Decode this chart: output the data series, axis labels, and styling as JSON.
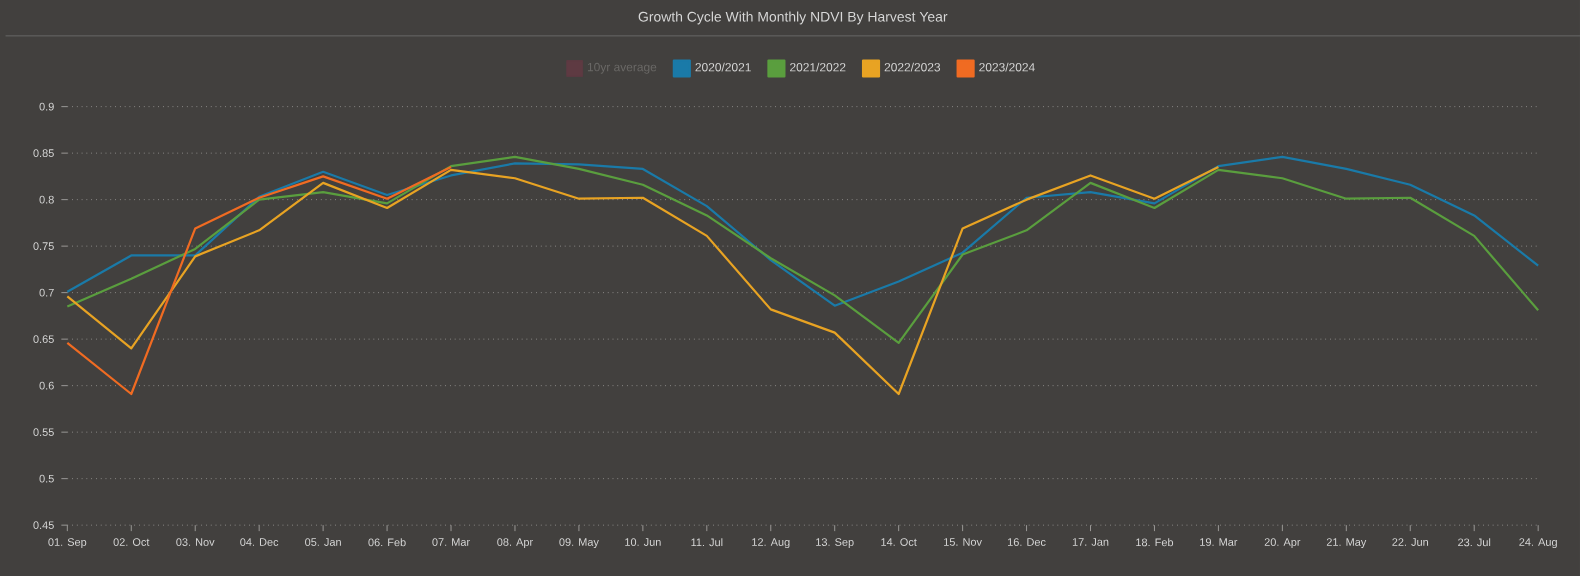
{
  "chart_data": {
    "type": "line",
    "title": "Growth Cycle With Monthly NDVI By Harvest Year",
    "categories": [
      "01. Sep",
      "02. Oct",
      "03. Nov",
      "04. Dec",
      "05. Jan",
      "06. Feb",
      "07. Mar",
      "08. Apr",
      "09. May",
      "10. Jun",
      "11. Jul",
      "12. Aug",
      "13. Sep",
      "14. Oct",
      "15. Nov",
      "16. Dec",
      "17. Jan",
      "18. Feb",
      "19. Mar",
      "20. Apr",
      "21. May",
      "22. Jun",
      "23. Jul",
      "24. Aug"
    ],
    "series": [
      {
        "name": "10yr average",
        "color": "#5e3a42",
        "values": [
          null,
          null,
          null,
          null,
          null,
          null,
          null,
          null,
          null,
          null,
          null,
          null,
          null,
          null,
          null,
          null,
          null,
          null,
          null,
          null,
          null,
          null,
          null,
          null
        ]
      },
      {
        "name": "2020/2021",
        "color": "#1a7aa8",
        "values": [
          0.701,
          0.74,
          0.74,
          0.803,
          0.83,
          0.805,
          0.826,
          0.839,
          0.838,
          0.833,
          0.793,
          0.735,
          0.686,
          0.712,
          0.743,
          0.802,
          0.808,
          0.796,
          0.836,
          0.846,
          0.833,
          0.816,
          0.783,
          0.729
        ]
      },
      {
        "name": "2021/2022",
        "color": "#5a9e3e",
        "values": [
          0.685,
          0.715,
          0.747,
          0.8,
          0.808,
          0.796,
          0.836,
          0.846,
          0.833,
          0.816,
          0.783,
          0.737,
          0.697,
          0.646,
          0.741,
          0.767,
          0.818,
          0.791,
          0.832,
          0.823,
          0.801,
          0.802,
          0.761,
          0.681
        ]
      },
      {
        "name": "2022/2023",
        "color": "#e8a323",
        "values": [
          0.696,
          0.64,
          0.739,
          0.767,
          0.818,
          0.791,
          0.832,
          0.823,
          0.801,
          0.802,
          0.761,
          0.682,
          0.657,
          0.591,
          0.769,
          0.8,
          0.826,
          0.801,
          0.835,
          null,
          null,
          null,
          null,
          null
        ]
      },
      {
        "name": "2023/2024",
        "color": "#f06b22",
        "values": [
          0.646,
          0.591,
          0.769,
          0.802,
          0.825,
          0.801,
          0.835,
          null,
          null,
          null,
          null,
          null,
          null,
          null,
          null,
          null,
          null,
          null,
          null,
          null,
          null,
          null,
          null,
          null
        ]
      }
    ],
    "ylim": [
      0.45,
      0.9
    ],
    "yticks": [
      0.45,
      0.5,
      0.55,
      0.6,
      0.65,
      0.7,
      0.75,
      0.8,
      0.85,
      0.9
    ],
    "grid": "y",
    "legend": "top",
    "marker": "none",
    "line_style": "solid"
  }
}
